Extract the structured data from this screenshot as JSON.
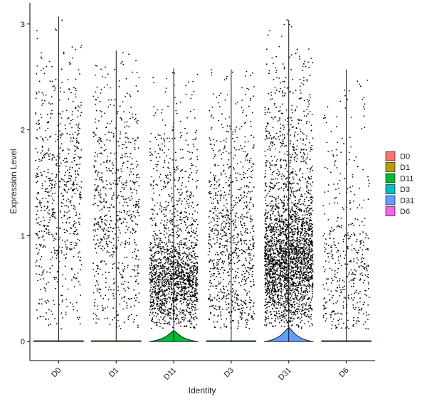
{
  "chart_data": {
    "type": "violin",
    "xlabel": "Identity",
    "ylabel": "Expression Level",
    "ylim": [
      -0.18,
      3.2
    ],
    "yticks": [
      0,
      1,
      2,
      3
    ],
    "grid": false,
    "legend_position": "right",
    "groups": [
      {
        "label": "D0",
        "color": "#F8766D",
        "n_points": 700,
        "y_max": 3.07,
        "zero_width": 0.43,
        "jitter": 0.4
      },
      {
        "label": "D1",
        "color": "#B79F00",
        "n_points": 700,
        "y_max": 2.75,
        "zero_width": 0.43,
        "jitter": 0.4
      },
      {
        "label": "D11",
        "color": "#00BA38",
        "n_points": 1700,
        "y_max": 2.58,
        "zero_width": 0.43,
        "jitter": 0.42
      },
      {
        "label": "D3",
        "color": "#00BFC4",
        "n_points": 900,
        "y_max": 2.57,
        "zero_width": 0.43,
        "jitter": 0.4
      },
      {
        "label": "D31",
        "color": "#619CFF",
        "n_points": 3000,
        "y_max": 3.04,
        "zero_width": 0.43,
        "jitter": 0.42
      },
      {
        "label": "D6",
        "color": "#F564E3",
        "n_points": 450,
        "y_max": 2.57,
        "zero_width": 0.43,
        "jitter": 0.4
      }
    ],
    "legend": [
      "D0",
      "D1",
      "D11",
      "D3",
      "D31",
      "D6"
    ]
  }
}
